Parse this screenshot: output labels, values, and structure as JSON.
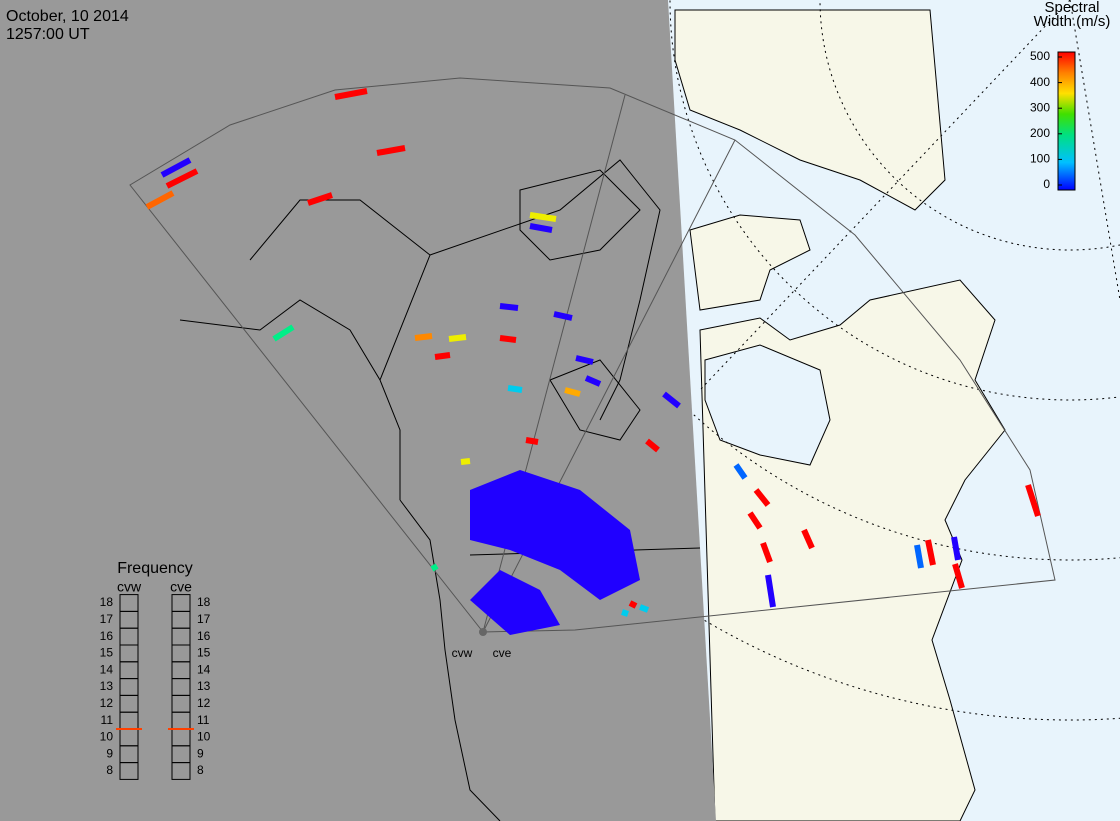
{
  "header": {
    "date": "October, 10 2014",
    "time": "1257:00 UT"
  },
  "colorbar": {
    "title": [
      "Spectral",
      "Width (m/s)"
    ],
    "lim": [
      0,
      500
    ],
    "ticks": [
      0,
      100,
      200,
      300,
      400,
      500
    ]
  },
  "frequency": {
    "title": "Frequency",
    "ticks": [
      8,
      9,
      10,
      11,
      12,
      13,
      14,
      15,
      16,
      17,
      18
    ],
    "radars": [
      {
        "name": "cvw",
        "value": 10.5,
        "color": "#ff4000"
      },
      {
        "name": "cve",
        "value": 10.5,
        "color": "#ff4000"
      }
    ]
  },
  "sites": [
    "cvw",
    "cve"
  ]
}
